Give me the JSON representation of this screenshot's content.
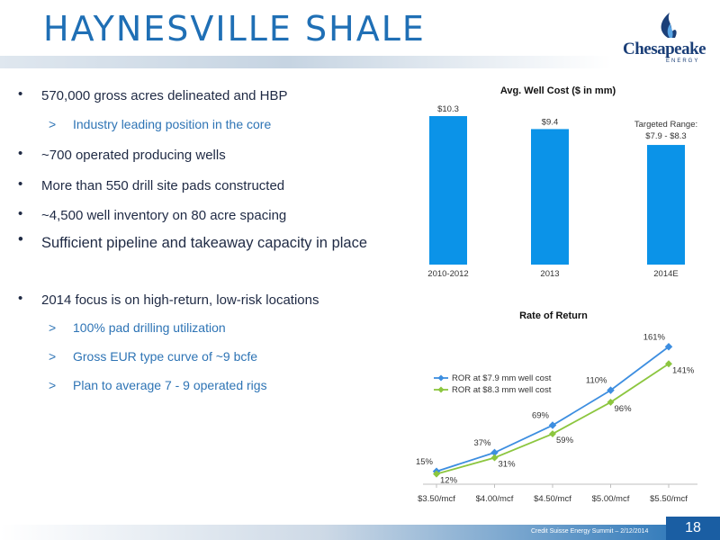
{
  "slide": {
    "title": "HAYNESVILLE SHALE",
    "logo": {
      "name": "Chesapeake",
      "sub": "ENERGY"
    },
    "footer": "Credit Suisse Energy Summit – 2/12/2014",
    "page_number": "18"
  },
  "bullets": [
    {
      "level": 1,
      "marker": "•",
      "text": "570,000 gross acres delineated and HBP"
    },
    {
      "level": 2,
      "marker": ">",
      "text": "Industry leading position in the core"
    },
    {
      "level": 1,
      "marker": "•",
      "text": "~700 operated producing wells"
    },
    {
      "level": 1,
      "marker": "•",
      "text": "More than 550 drill site pads constructed"
    },
    {
      "level": 1,
      "marker": "•",
      "text": "~4,500 well inventory on 80 acre spacing"
    },
    {
      "level": 1,
      "marker": "•",
      "text": "Sufficient pipeline and takeaway capacity in place"
    },
    {
      "level": 1,
      "marker": "•",
      "text": "2014 focus is on high-return, low-risk locations"
    },
    {
      "level": 2,
      "marker": ">",
      "text": "100% pad drilling utilization"
    },
    {
      "level": 2,
      "marker": ">",
      "text": "Gross EUR type curve of ~9 bcfe"
    },
    {
      "level": 2,
      "marker": ">",
      "text": "Plan to average 7 - 9 operated rigs"
    }
  ],
  "chart_data": [
    {
      "type": "bar",
      "title": "Avg. Well Cost ($ in mm)",
      "categories": [
        "2010-2012",
        "2013",
        "2014E"
      ],
      "values": [
        10.3,
        9.4,
        8.3
      ],
      "value_labels": [
        "$10.3",
        "$9.4",
        ""
      ],
      "annotation": {
        "line1": "Targeted Range:",
        "line2": "$7.9 - $8.3"
      },
      "ylim": [
        0,
        10.8
      ],
      "color": "#0b93e8"
    },
    {
      "type": "line",
      "title": "Rate of Return",
      "categories": [
        "$3.50/mcf",
        "$4.00/mcf",
        "$4.50/mcf",
        "$5.00/mcf",
        "$5.50/mcf"
      ],
      "ylim": [
        0,
        175
      ],
      "legend_position": "top-left",
      "series": [
        {
          "name": "ROR at $7.9 mm well cost",
          "values": [
            15,
            37,
            69,
            110,
            161
          ],
          "labels": [
            "15%",
            "37%",
            "69%",
            "110%",
            "161%"
          ],
          "color": "#3d8ee0"
        },
        {
          "name": "ROR at $8.3 mm well cost",
          "values": [
            12,
            31,
            59,
            96,
            141
          ],
          "labels": [
            "12%",
            "31%",
            "59%",
            "96%",
            "141%"
          ],
          "color": "#8cc63f"
        }
      ]
    }
  ]
}
